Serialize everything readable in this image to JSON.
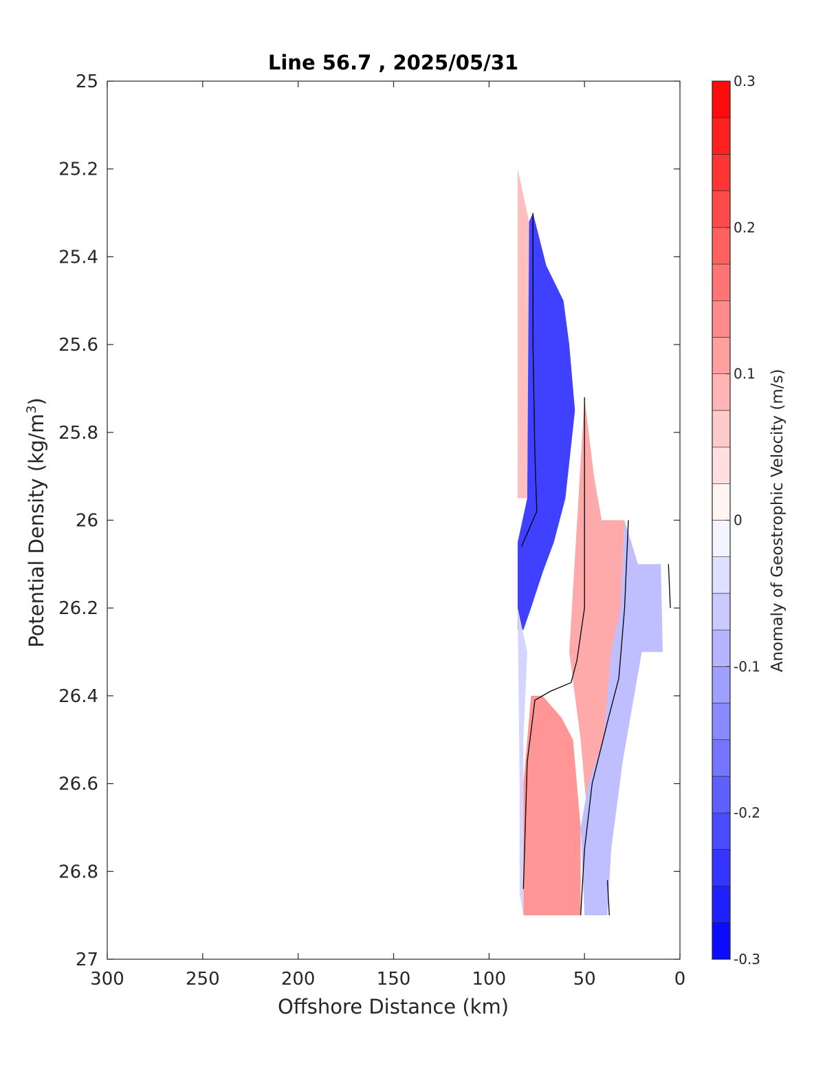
{
  "chart_data": {
    "type": "heatmap",
    "title": "Line 56.7 , 2025/05/31",
    "xlabel": "Offshore Distance (km)",
    "ylabel_main": "Potential Density (kg/m",
    "ylabel_sup": "3",
    "ylabel_close": ")",
    "xlim": [
      300,
      0
    ],
    "ylim": [
      27,
      25
    ],
    "x_reversed": true,
    "y_reversed": true,
    "xticks": [
      300,
      250,
      200,
      150,
      100,
      50,
      0
    ],
    "xtick_labels": [
      "300",
      "250",
      "200",
      "150",
      "100",
      "50",
      "0"
    ],
    "yticks": [
      25,
      25.2,
      25.4,
      25.6,
      25.8,
      26,
      26.2,
      26.4,
      26.6,
      26.8,
      27
    ],
    "ytick_labels": [
      "25",
      "25.2",
      "25.4",
      "25.6",
      "25.8",
      "26",
      "26.2",
      "26.4",
      "26.6",
      "26.8",
      "27"
    ],
    "grid": false,
    "colorbar": {
      "label": "Anomaly of Geostrophic Velocity (m/s)",
      "range": [
        -0.3,
        0.3
      ],
      "step": 0.025,
      "ticks": [
        0.3,
        0.2,
        0.1,
        0,
        -0.1,
        -0.2,
        -0.3
      ],
      "tick_labels": [
        "0.3",
        "0.2",
        "0.1",
        "0",
        "-0.1",
        "-0.2",
        "-0.3"
      ],
      "color_min": "#0000ff",
      "color_mid": "#ffffff",
      "color_max": "#ff0000"
    },
    "regions": [
      {
        "name": "positive-core-west",
        "value": 0.075,
        "polygon": [
          [
            85,
            25.2
          ],
          [
            79,
            25.32
          ],
          [
            80,
            25.95
          ],
          [
            85,
            25.95
          ]
        ]
      },
      {
        "name": "negative-core-upper",
        "value": -0.225,
        "polygon": [
          [
            77,
            25.3
          ],
          [
            70,
            25.42
          ],
          [
            61,
            25.5
          ],
          [
            58,
            25.6
          ],
          [
            55,
            25.75
          ],
          [
            60,
            25.95
          ],
          [
            66,
            26.05
          ],
          [
            72,
            26.12
          ],
          [
            78,
            26.2
          ],
          [
            82,
            26.25
          ],
          [
            85,
            26.25
          ],
          [
            85,
            26.05
          ],
          [
            80,
            25.95
          ],
          [
            79,
            25.32
          ]
        ]
      },
      {
        "name": "positive-core-middle",
        "value": 0.1,
        "polygon": [
          [
            50,
            25.72
          ],
          [
            45,
            25.9
          ],
          [
            41,
            26.0
          ],
          [
            29,
            26.0
          ],
          [
            31,
            26.2
          ],
          [
            36,
            26.4
          ],
          [
            42,
            26.6
          ],
          [
            48,
            26.7
          ],
          [
            52,
            26.5
          ],
          [
            55,
            26.4
          ],
          [
            58,
            26.3
          ],
          [
            50,
            25.72
          ]
        ]
      },
      {
        "name": "negative-east",
        "value": -0.075,
        "polygon": [
          [
            29,
            26.0
          ],
          [
            22,
            26.1
          ],
          [
            10,
            26.1
          ],
          [
            9,
            26.3
          ],
          [
            20,
            26.3
          ],
          [
            26,
            26.45
          ],
          [
            30,
            26.55
          ],
          [
            36,
            26.75
          ],
          [
            38,
            26.9
          ],
          [
            50,
            26.9
          ],
          [
            52,
            26.7
          ],
          [
            48,
            26.6
          ],
          [
            40,
            26.5
          ],
          [
            36,
            26.3
          ],
          [
            31,
            26.2
          ]
        ]
      },
      {
        "name": "positive-core-lower",
        "value": 0.125,
        "polygon": [
          [
            78,
            26.4
          ],
          [
            82,
            26.6
          ],
          [
            82,
            26.9
          ],
          [
            52,
            26.9
          ],
          [
            52,
            26.7
          ],
          [
            56,
            26.5
          ],
          [
            62,
            26.45
          ],
          [
            72,
            26.4
          ]
        ]
      },
      {
        "name": "negative-west-lower",
        "value": -0.05,
        "polygon": [
          [
            85,
            26.2
          ],
          [
            84,
            26.6
          ],
          [
            84,
            26.85
          ],
          [
            82,
            26.9
          ],
          [
            82,
            26.5
          ],
          [
            80,
            26.3
          ]
        ]
      }
    ],
    "zero_contours": [
      [
        [
          77,
          25.3
        ],
        [
          77,
          25.6
        ],
        [
          76,
          25.85
        ],
        [
          75,
          25.98
        ],
        [
          83,
          26.06
        ]
      ],
      [
        [
          50,
          25.72
        ],
        [
          50,
          26.0
        ],
        [
          50,
          26.2
        ],
        [
          54,
          26.32
        ],
        [
          57,
          26.37
        ],
        [
          68,
          26.39
        ],
        [
          76,
          26.41
        ],
        [
          80,
          26.55
        ],
        [
          82,
          26.84
        ]
      ],
      [
        [
          27,
          26.0
        ],
        [
          29,
          26.2
        ],
        [
          32,
          26.36
        ],
        [
          38,
          26.46
        ],
        [
          46,
          26.6
        ],
        [
          50,
          26.75
        ],
        [
          52,
          26.9
        ]
      ],
      [
        [
          38,
          26.82
        ],
        [
          37,
          26.9
        ]
      ],
      [
        [
          6,
          26.1
        ],
        [
          5,
          26.2
        ]
      ]
    ]
  }
}
